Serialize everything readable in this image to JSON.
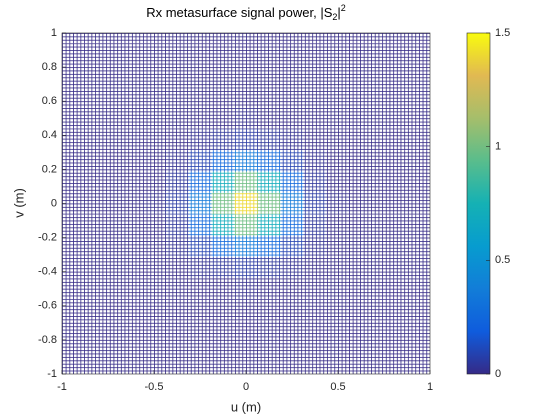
{
  "chart_data": {
    "type": "heatmap",
    "title": {
      "text": "Rx metasurface signal power, |S",
      "sub": "2",
      "after": "|",
      "sup": "2"
    },
    "x_label": "u (m)",
    "y_label": "v (m)",
    "x": [
      -1,
      -0.875,
      -0.75,
      -0.625,
      -0.5,
      -0.375,
      -0.25,
      -0.125,
      0,
      0.125,
      0.25,
      0.375,
      0.5,
      0.625,
      0.75,
      0.875,
      1
    ],
    "y": [
      -1,
      -0.875,
      -0.75,
      -0.625,
      -0.5,
      -0.375,
      -0.25,
      -0.125,
      0,
      0.125,
      0.25,
      0.375,
      0.5,
      0.625,
      0.75,
      0.875,
      1
    ],
    "z": [
      [
        0,
        0,
        0,
        0,
        0,
        0,
        0,
        0,
        0,
        0,
        0,
        0,
        0,
        0,
        0,
        0,
        0
      ],
      [
        0,
        0,
        0,
        0,
        0,
        0,
        0,
        0,
        0,
        0,
        0,
        0,
        0,
        0,
        0,
        0,
        0
      ],
      [
        0,
        0,
        0,
        0,
        0,
        0,
        0,
        0,
        0,
        0,
        0,
        0,
        0,
        0,
        0,
        0,
        0
      ],
      [
        0,
        0,
        0,
        0,
        0,
        0,
        0,
        0,
        0,
        0,
        0,
        0,
        0,
        0,
        0,
        0,
        0
      ],
      [
        0,
        0,
        0,
        0,
        0,
        0,
        0,
        0,
        0.01,
        0,
        0,
        0,
        0,
        0,
        0,
        0,
        0
      ],
      [
        0,
        0,
        0,
        0,
        0,
        0,
        0.02,
        0.04,
        0.06,
        0.04,
        0.02,
        0,
        0,
        0,
        0,
        0,
        0
      ],
      [
        0,
        0,
        0,
        0,
        0,
        0.02,
        0.09,
        0.25,
        0.35,
        0.25,
        0.09,
        0.02,
        0,
        0,
        0,
        0,
        0
      ],
      [
        0,
        0,
        0,
        0,
        0,
        0.04,
        0.25,
        0.7,
        0.99,
        0.7,
        0.25,
        0.04,
        0,
        0,
        0,
        0,
        0
      ],
      [
        0,
        0,
        0,
        0,
        0.01,
        0.06,
        0.35,
        0.99,
        1.4,
        0.99,
        0.35,
        0.06,
        0.01,
        0,
        0,
        0,
        0
      ],
      [
        0,
        0,
        0,
        0,
        0,
        0.04,
        0.25,
        0.7,
        0.99,
        0.7,
        0.25,
        0.04,
        0,
        0,
        0,
        0,
        0
      ],
      [
        0,
        0,
        0,
        0,
        0,
        0.02,
        0.09,
        0.25,
        0.35,
        0.25,
        0.09,
        0.02,
        0,
        0,
        0,
        0,
        0
      ],
      [
        0,
        0,
        0,
        0,
        0,
        0,
        0.02,
        0.04,
        0.06,
        0.04,
        0.02,
        0,
        0,
        0,
        0,
        0,
        0
      ],
      [
        0,
        0,
        0,
        0,
        0,
        0,
        0,
        0,
        0.01,
        0,
        0,
        0,
        0,
        0,
        0,
        0,
        0
      ],
      [
        0,
        0,
        0,
        0,
        0,
        0,
        0,
        0,
        0,
        0,
        0,
        0,
        0,
        0,
        0,
        0,
        0
      ],
      [
        0,
        0,
        0,
        0,
        0,
        0,
        0,
        0,
        0,
        0,
        0,
        0,
        0,
        0,
        0,
        0,
        0
      ],
      [
        0,
        0,
        0,
        0,
        0,
        0,
        0,
        0,
        0,
        0,
        0,
        0,
        0,
        0,
        0,
        0,
        0
      ],
      [
        0,
        0,
        0,
        0,
        0,
        0,
        0,
        0,
        0,
        0,
        0,
        0,
        0,
        0,
        0,
        0,
        0
      ]
    ],
    "xlim": [
      -1,
      1
    ],
    "ylim": [
      -1,
      1
    ],
    "xticks": [
      -1,
      -0.5,
      0,
      0.5,
      1
    ],
    "yticks": [
      -1,
      -0.8,
      -0.6,
      -0.4,
      -0.2,
      0,
      0.2,
      0.4,
      0.6,
      0.8,
      1
    ],
    "clim": [
      0,
      1.5
    ],
    "cticks": [
      0,
      0.5,
      1,
      1.5
    ],
    "colormap": "parula"
  }
}
